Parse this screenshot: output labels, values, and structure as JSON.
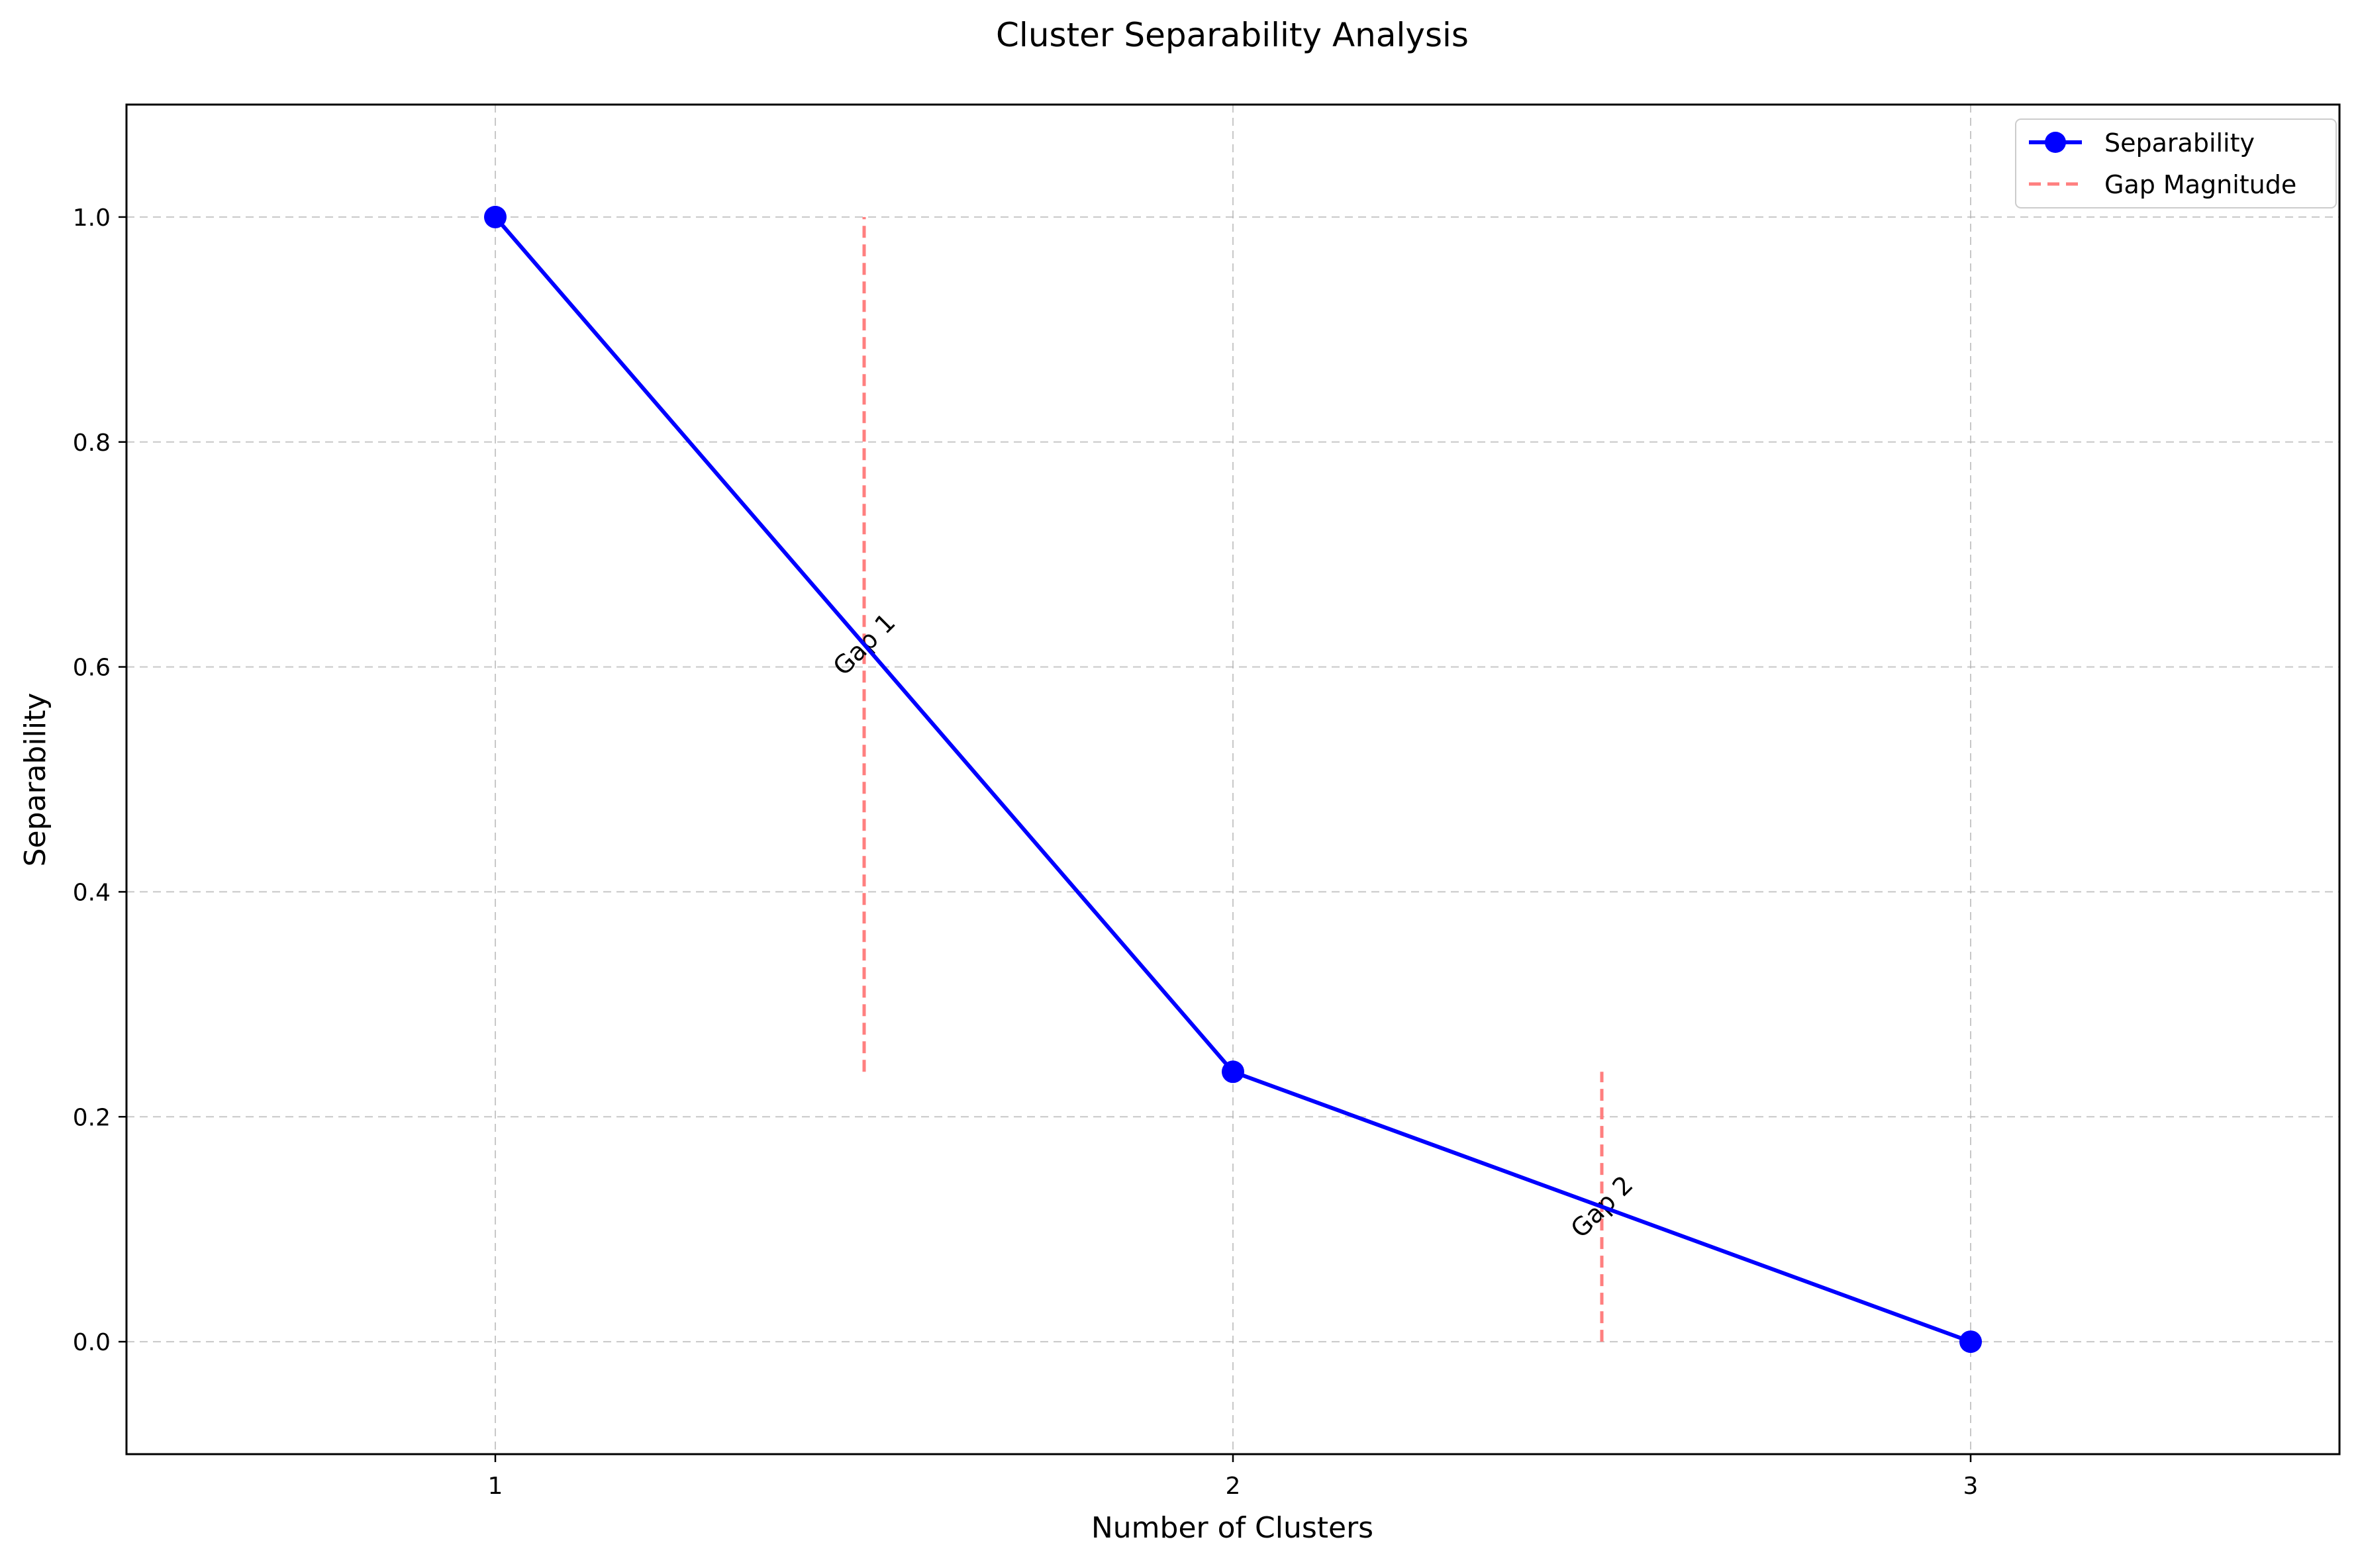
{
  "chart_data": {
    "type": "line",
    "title": "Cluster Separability Analysis",
    "xlabel": "Number of Clusters",
    "ylabel": "Separability",
    "xlim": [
      0.5,
      3.5
    ],
    "ylim": [
      -0.1,
      1.1
    ],
    "x_ticks": [
      1,
      2,
      3
    ],
    "y_ticks": [
      0.0,
      0.2,
      0.4,
      0.6,
      0.8,
      1.0
    ],
    "y_tick_labels": [
      "0.0",
      "0.2",
      "0.4",
      "0.6",
      "0.8",
      "1.0"
    ],
    "grid": true,
    "legend_position": "top-right",
    "series": [
      {
        "name": "Separability",
        "x": [
          1,
          2,
          3
        ],
        "y": [
          1.0,
          0.24,
          0.0
        ],
        "color": "#0000ff",
        "marker": "circle"
      }
    ],
    "gap_lines": {
      "legend_label": "Gap Magnitude",
      "color": "#ff7f7f",
      "lines": [
        {
          "x": 1.5,
          "y_from": 0.24,
          "y_to": 1.0,
          "label": "Gap 1",
          "label_y": 0.62
        },
        {
          "x": 2.5,
          "y_from": 0.0,
          "y_to": 0.24,
          "label": "Gap 2",
          "label_y": 0.12
        }
      ]
    }
  }
}
